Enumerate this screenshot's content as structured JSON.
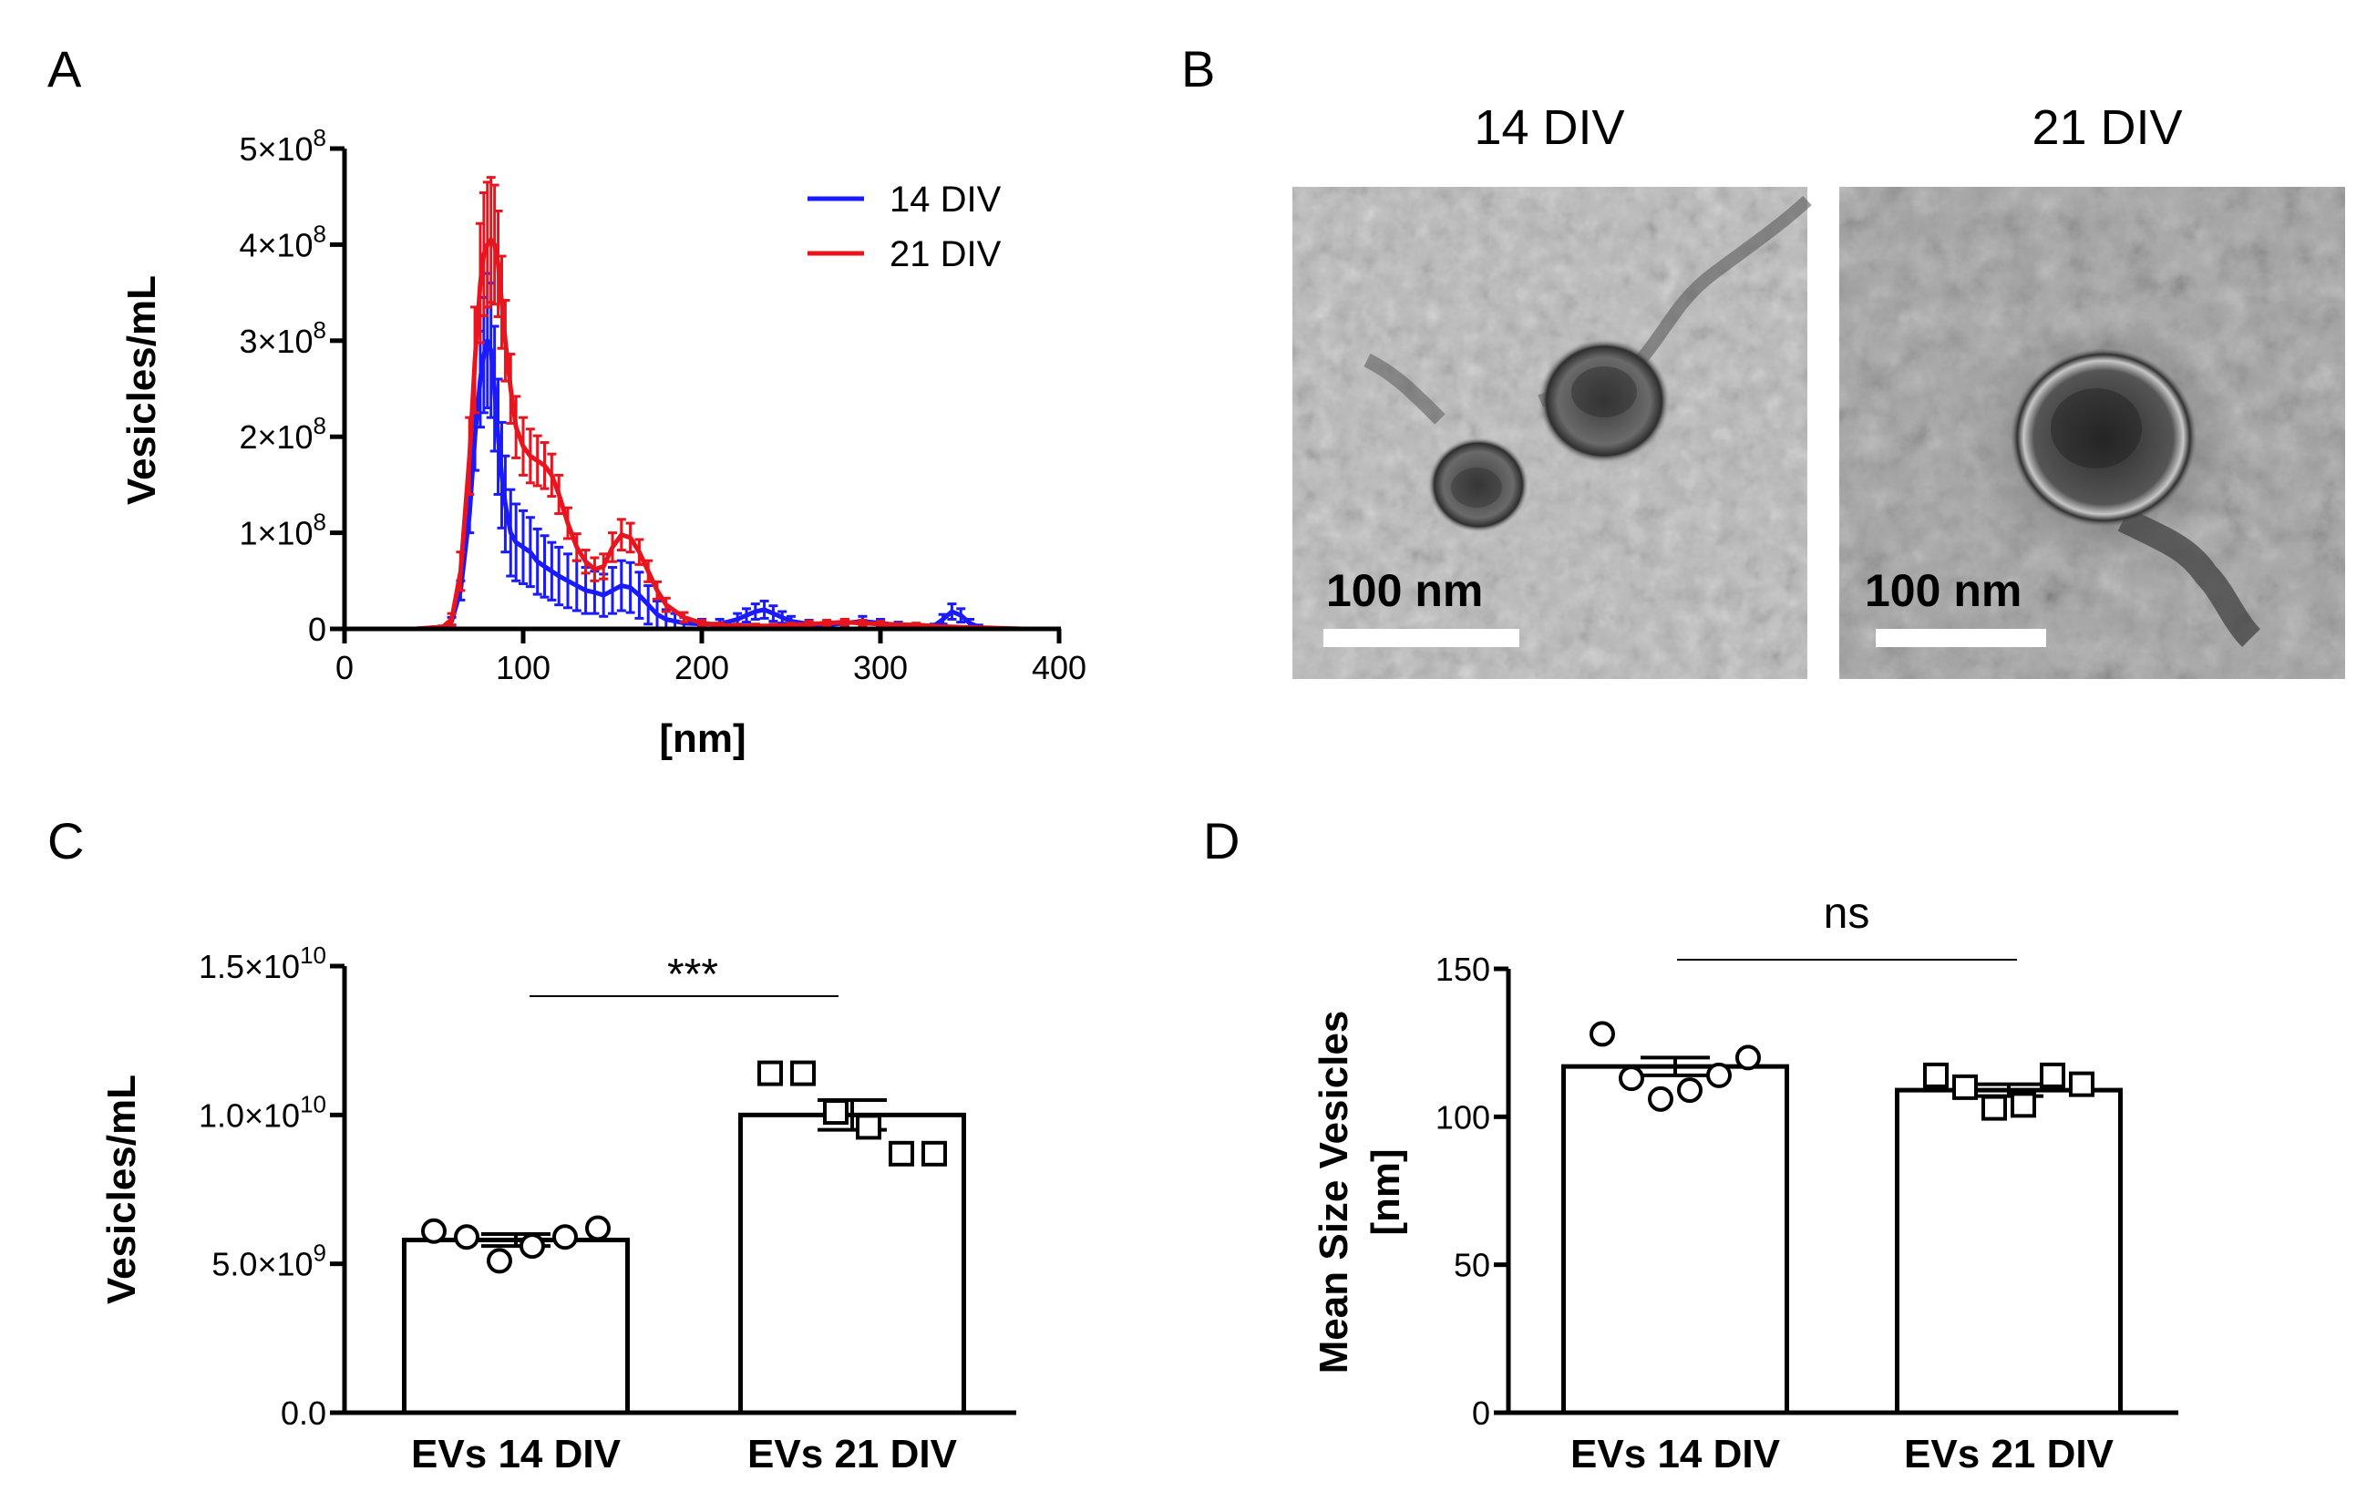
{
  "panel_labels": [
    "A",
    "B",
    "C",
    "D"
  ],
  "micrographs": {
    "left_title": "14 DIV",
    "right_title": "21 DIV",
    "scale_bar_label": "100 nm"
  },
  "chart_data": [
    {
      "panel": "A",
      "type": "line",
      "title": "",
      "xlabel": "[nm]",
      "ylabel": "Vesicles/mL",
      "xlim": [
        0,
        400
      ],
      "ylim": [
        0,
        500000000
      ],
      "xticks": [
        "0",
        "100",
        "200",
        "300",
        "400"
      ],
      "yticks": [
        {
          "base": "0",
          "exp": ""
        },
        {
          "base": "1×10",
          "exp": "8"
        },
        {
          "base": "2×10",
          "exp": "8"
        },
        {
          "base": "3×10",
          "exp": "8"
        },
        {
          "base": "4×10",
          "exp": "8"
        },
        {
          "base": "5×10",
          "exp": "8"
        }
      ],
      "legend": [
        "14 DIV",
        "21 DIV"
      ],
      "legend_position": "top-right",
      "series": [
        {
          "name": "14 DIV",
          "color": "#1a1aff",
          "x": [
            0,
            40,
            55,
            60,
            65,
            70,
            73,
            76,
            78,
            80,
            82,
            84,
            86,
            88,
            90,
            93,
            96,
            100,
            104,
            108,
            112,
            116,
            120,
            125,
            130,
            135,
            140,
            145,
            150,
            155,
            160,
            165,
            170,
            175,
            180,
            185,
            190,
            200,
            210,
            220,
            225,
            230,
            235,
            240,
            245,
            250,
            260,
            270,
            280,
            290,
            300,
            310,
            320,
            330,
            335,
            340,
            345,
            350,
            355,
            360,
            380,
            400
          ],
          "y": [
            0,
            0,
            2,
            8,
            40,
            120,
            200,
            260,
            285,
            300,
            290,
            250,
            200,
            160,
            130,
            100,
            90,
            85,
            80,
            70,
            65,
            60,
            55,
            50,
            45,
            40,
            38,
            35,
            40,
            45,
            43,
            35,
            25,
            15,
            10,
            8,
            6,
            5,
            5,
            10,
            14,
            18,
            20,
            16,
            12,
            8,
            5,
            4,
            6,
            8,
            6,
            4,
            2,
            3,
            10,
            18,
            14,
            6,
            2,
            0,
            0,
            0
          ],
          "err": [
            0,
            0,
            1,
            4,
            10,
            20,
            35,
            50,
            60,
            70,
            70,
            65,
            60,
            55,
            50,
            45,
            40,
            38,
            36,
            34,
            32,
            30,
            30,
            28,
            26,
            24,
            22,
            22,
            24,
            26,
            26,
            24,
            20,
            14,
            10,
            8,
            6,
            5,
            5,
            6,
            7,
            8,
            9,
            8,
            6,
            5,
            4,
            3,
            4,
            5,
            4,
            3,
            2,
            2,
            5,
            8,
            7,
            4,
            2,
            0,
            0,
            0
          ]
        },
        {
          "name": "21 DIV",
          "color": "#e8141e",
          "x": [
            0,
            40,
            55,
            60,
            65,
            70,
            73,
            76,
            78,
            80,
            82,
            84,
            86,
            88,
            90,
            93,
            96,
            100,
            104,
            108,
            112,
            116,
            120,
            125,
            130,
            135,
            140,
            145,
            150,
            155,
            160,
            165,
            170,
            175,
            180,
            190,
            200,
            210,
            220,
            230,
            240,
            250,
            260,
            270,
            280,
            290,
            300,
            320,
            340,
            360,
            380,
            400
          ],
          "y": [
            0,
            0,
            2,
            10,
            60,
            180,
            280,
            360,
            390,
            400,
            405,
            400,
            380,
            340,
            300,
            250,
            210,
            190,
            180,
            175,
            170,
            160,
            140,
            110,
            85,
            70,
            62,
            65,
            85,
            98,
            95,
            80,
            60,
            40,
            25,
            12,
            6,
            4,
            3,
            3,
            3,
            4,
            5,
            6,
            7,
            6,
            5,
            4,
            2,
            1,
            0,
            0
          ],
          "err": [
            0,
            0,
            1,
            6,
            20,
            40,
            55,
            62,
            64,
            65,
            65,
            62,
            55,
            48,
            42,
            36,
            32,
            30,
            28,
            26,
            24,
            22,
            20,
            16,
            14,
            12,
            12,
            13,
            15,
            16,
            15,
            13,
            11,
            9,
            7,
            5,
            3,
            2,
            2,
            2,
            2,
            2,
            3,
            3,
            3,
            3,
            3,
            2,
            1,
            1,
            0,
            0
          ]
        }
      ],
      "y_unit_multiplier": 1000000
    },
    {
      "panel": "C",
      "type": "bar",
      "title": "",
      "xlabel": "",
      "ylabel": "Vesicles/mL",
      "categories": [
        "EVs 14 DIV",
        "EVs 21 DIV"
      ],
      "values": [
        5800000000,
        10000000000
      ],
      "sem": [
        200000000,
        500000000
      ],
      "points": [
        [
          6100000000,
          5900000000,
          5100000000,
          5600000000,
          5900000000,
          6200000000
        ],
        [
          11400000000,
          11400000000,
          10100000000,
          9600000000,
          8700000000,
          8700000000
        ]
      ],
      "point_markers": [
        "circle",
        "square"
      ],
      "ylim": [
        0,
        15000000000
      ],
      "yticks": [
        {
          "base": "0.0",
          "exp": ""
        },
        {
          "base": "5.0×10",
          "exp": "9"
        },
        {
          "base": "1.0×10",
          "exp": "10"
        },
        {
          "base": "1.5×10",
          "exp": "10"
        }
      ],
      "significance": "***"
    },
    {
      "panel": "D",
      "type": "bar",
      "title": "",
      "xlabel": "",
      "ylabel_lines": [
        "Mean Size Vesicles",
        "[nm]"
      ],
      "categories": [
        "EVs 14 DIV",
        "EVs 21 DIV"
      ],
      "values": [
        117,
        109
      ],
      "sem": [
        3,
        2
      ],
      "points": [
        [
          128,
          113,
          106,
          109,
          114,
          120
        ],
        [
          114,
          110,
          103,
          104,
          114,
          111
        ]
      ],
      "point_markers": [
        "circle",
        "square"
      ],
      "ylim": [
        0,
        150
      ],
      "yticks": [
        {
          "base": "0",
          "exp": ""
        },
        {
          "base": "50",
          "exp": ""
        },
        {
          "base": "100",
          "exp": ""
        },
        {
          "base": "150",
          "exp": ""
        }
      ],
      "significance": "ns"
    }
  ]
}
